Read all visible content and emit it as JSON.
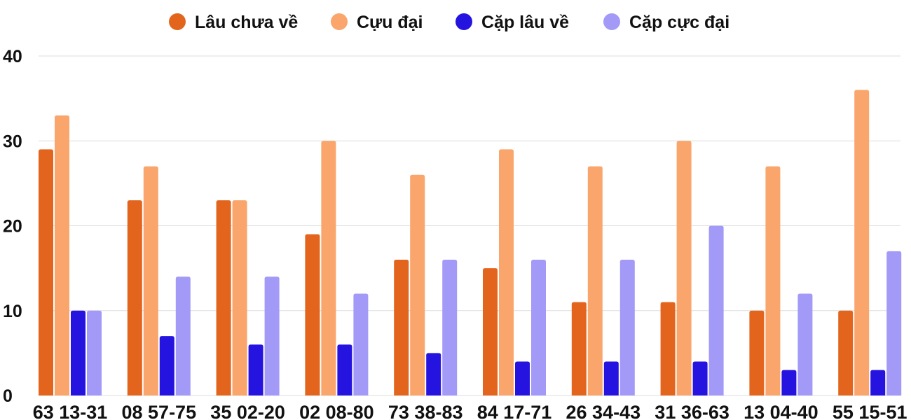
{
  "colors": {
    "lau_chua_ve": "#E3651D",
    "cuu_dai": "#F9A56B",
    "cap_lau_ve": "#2513E0",
    "cap_cuc_dai": "#A39AF8",
    "grid": "#DDDDDD",
    "text": "#111111"
  },
  "chart_data": {
    "type": "bar",
    "title": "",
    "xlabel": "",
    "ylabel": "",
    "ylim": [
      0,
      40
    ],
    "yticks": [
      "0",
      "10",
      "20",
      "30",
      "40"
    ],
    "grid": true,
    "legend": "top-center",
    "categories": [
      "63 13-31",
      "08 57-75",
      "35 02-20",
      "02 08-80",
      "73 38-83",
      "84 17-71",
      "26 34-43",
      "31 36-63",
      "13 04-40",
      "55 15-51"
    ],
    "series": [
      {
        "name": "Lâu chưa về",
        "color": "#E3651D",
        "values": [
          29,
          23,
          23,
          19,
          16,
          15,
          11,
          11,
          10,
          10
        ]
      },
      {
        "name": "Cựu đại",
        "color": "#F9A56B",
        "values": [
          33,
          27,
          23,
          30,
          26,
          29,
          27,
          30,
          27,
          36
        ]
      },
      {
        "name": "Cặp lâu về",
        "color": "#2513E0",
        "values": [
          10,
          7,
          6,
          6,
          5,
          4,
          4,
          4,
          3,
          3
        ]
      },
      {
        "name": "Cặp cực đại",
        "color": "#A39AF8",
        "values": [
          10,
          14,
          14,
          12,
          16,
          16,
          16,
          20,
          12,
          17
        ]
      }
    ]
  }
}
